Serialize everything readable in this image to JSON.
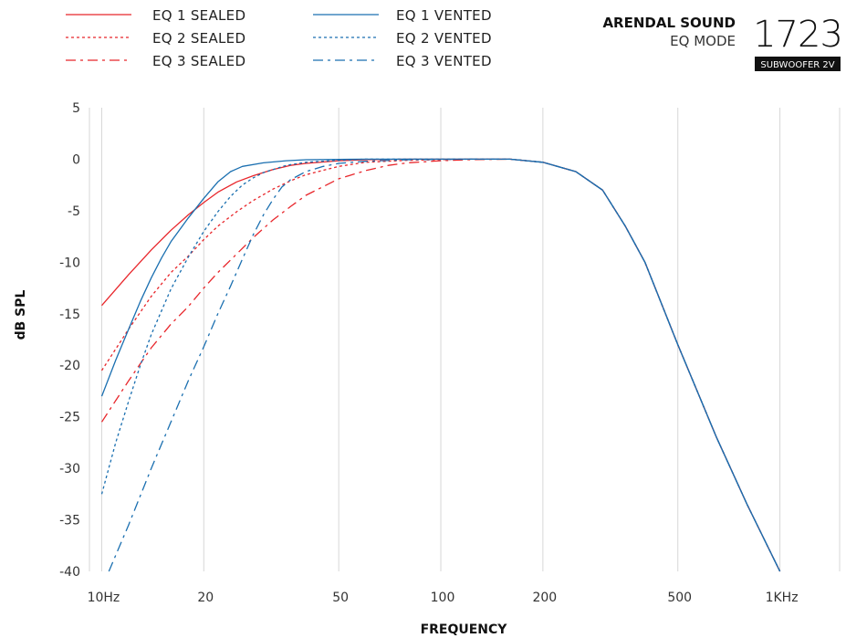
{
  "header": {
    "brand": "ARENDAL SOUND",
    "mode": "EQ MODE",
    "model_number": "1723",
    "model_tag": "SUBWOOFER 2V"
  },
  "chart_data": {
    "type": "line",
    "xlabel": "FREQUENCY",
    "ylabel": "dB SPL",
    "x_scale": "log",
    "xlim": [
      9.2,
      1500
    ],
    "ylim": [
      -40,
      5
    ],
    "x_ticks": [
      {
        "value": 10,
        "label": "10Hz"
      },
      {
        "value": 20,
        "label": "20"
      },
      {
        "value": 50,
        "label": "50"
      },
      {
        "value": 100,
        "label": "100"
      },
      {
        "value": 200,
        "label": "200"
      },
      {
        "value": 500,
        "label": "500"
      },
      {
        "value": 1000,
        "label": "1KHz"
      }
    ],
    "y_ticks": [
      5,
      0,
      -5,
      -10,
      -15,
      -20,
      -25,
      -30,
      -35,
      -40
    ],
    "grid": "vertical",
    "legend_position": "top-left",
    "series": [
      {
        "name": "EQ 1 SEALED",
        "color": "#e8262b",
        "dash": "solid",
        "points": [
          [
            10,
            -14.2
          ],
          [
            12,
            -11.2
          ],
          [
            14,
            -8.8
          ],
          [
            16,
            -6.9
          ],
          [
            18,
            -5.4
          ],
          [
            20,
            -4.2
          ],
          [
            22,
            -3.2
          ],
          [
            25,
            -2.2
          ],
          [
            28,
            -1.6
          ],
          [
            32,
            -1.0
          ],
          [
            36,
            -0.6
          ],
          [
            40,
            -0.4
          ],
          [
            50,
            -0.15
          ],
          [
            60,
            -0.05
          ],
          [
            80,
            0
          ],
          [
            120,
            0
          ],
          [
            160,
            0
          ],
          [
            200,
            -0.3
          ],
          [
            250,
            -1.2
          ],
          [
            300,
            -3.0
          ],
          [
            350,
            -6.5
          ],
          [
            400,
            -10
          ],
          [
            500,
            -18
          ],
          [
            650,
            -27
          ],
          [
            800,
            -33.5
          ],
          [
            1000,
            -40
          ]
        ]
      },
      {
        "name": "EQ 2 SEALED",
        "color": "#e8262b",
        "dash": "dotted",
        "points": [
          [
            10,
            -20.5
          ],
          [
            12,
            -16.5
          ],
          [
            14,
            -13.3
          ],
          [
            16,
            -11
          ],
          [
            18,
            -9.4
          ],
          [
            20,
            -7.8
          ],
          [
            22,
            -6.5
          ],
          [
            25,
            -5.1
          ],
          [
            28,
            -4.0
          ],
          [
            32,
            -2.9
          ],
          [
            36,
            -2.1
          ],
          [
            40,
            -1.5
          ],
          [
            50,
            -0.7
          ],
          [
            60,
            -0.3
          ],
          [
            80,
            -0.1
          ],
          [
            120,
            0
          ],
          [
            160,
            0
          ],
          [
            200,
            -0.3
          ],
          [
            250,
            -1.2
          ],
          [
            300,
            -3.0
          ],
          [
            350,
            -6.5
          ],
          [
            400,
            -10
          ],
          [
            500,
            -18
          ],
          [
            650,
            -27
          ],
          [
            800,
            -33.5
          ],
          [
            1000,
            -40
          ]
        ]
      },
      {
        "name": "EQ 3 SEALED",
        "color": "#e8262b",
        "dash": "dashdot",
        "points": [
          [
            10,
            -25.5
          ],
          [
            12,
            -21.5
          ],
          [
            14,
            -18.3
          ],
          [
            16,
            -16
          ],
          [
            18,
            -14.3
          ],
          [
            20,
            -12.5
          ],
          [
            22,
            -11
          ],
          [
            25,
            -9.2
          ],
          [
            28,
            -7.6
          ],
          [
            32,
            -5.9
          ],
          [
            36,
            -4.6
          ],
          [
            40,
            -3.5
          ],
          [
            50,
            -1.9
          ],
          [
            60,
            -1.1
          ],
          [
            70,
            -0.6
          ],
          [
            80,
            -0.35
          ],
          [
            100,
            -0.15
          ],
          [
            120,
            -0.05
          ],
          [
            160,
            0
          ],
          [
            200,
            -0.3
          ],
          [
            250,
            -1.2
          ],
          [
            300,
            -3.0
          ],
          [
            350,
            -6.5
          ],
          [
            400,
            -10
          ],
          [
            500,
            -18
          ],
          [
            650,
            -27
          ],
          [
            800,
            -33.5
          ],
          [
            1000,
            -40
          ]
        ]
      },
      {
        "name": "EQ 1 VENTED",
        "color": "#1a6fb0",
        "dash": "solid",
        "points": [
          [
            10,
            -23
          ],
          [
            11,
            -19.5
          ],
          [
            12,
            -16.5
          ],
          [
            13,
            -13.8
          ],
          [
            14,
            -11.5
          ],
          [
            15,
            -9.6
          ],
          [
            16,
            -8
          ],
          [
            18,
            -5.7
          ],
          [
            20,
            -3.8
          ],
          [
            22,
            -2.2
          ],
          [
            24,
            -1.2
          ],
          [
            26,
            -0.7
          ],
          [
            30,
            -0.35
          ],
          [
            35,
            -0.15
          ],
          [
            40,
            -0.05
          ],
          [
            60,
            0
          ],
          [
            120,
            0
          ],
          [
            160,
            0
          ],
          [
            200,
            -0.3
          ],
          [
            250,
            -1.2
          ],
          [
            300,
            -3.0
          ],
          [
            350,
            -6.5
          ],
          [
            400,
            -10
          ],
          [
            500,
            -18
          ],
          [
            650,
            -27
          ],
          [
            800,
            -33.5
          ],
          [
            1000,
            -40
          ]
        ]
      },
      {
        "name": "EQ 2 VENTED",
        "color": "#1a6fb0",
        "dash": "dotted",
        "points": [
          [
            10,
            -32.5
          ],
          [
            11,
            -27.5
          ],
          [
            12,
            -23.5
          ],
          [
            13,
            -20
          ],
          [
            14,
            -17
          ],
          [
            16,
            -12.6
          ],
          [
            18,
            -9.5
          ],
          [
            20,
            -7
          ],
          [
            22,
            -5.1
          ],
          [
            24,
            -3.6
          ],
          [
            26,
            -2.5
          ],
          [
            28,
            -1.8
          ],
          [
            30,
            -1.3
          ],
          [
            35,
            -0.6
          ],
          [
            40,
            -0.3
          ],
          [
            50,
            -0.1
          ],
          [
            60,
            0
          ],
          [
            120,
            0
          ],
          [
            160,
            0
          ],
          [
            200,
            -0.3
          ],
          [
            250,
            -1.2
          ],
          [
            300,
            -3.0
          ],
          [
            350,
            -6.5
          ],
          [
            400,
            -10
          ],
          [
            500,
            -18
          ],
          [
            650,
            -27
          ],
          [
            800,
            -33.5
          ],
          [
            1000,
            -40
          ]
        ]
      },
      {
        "name": "EQ 3 VENTED",
        "color": "#1a6fb0",
        "dash": "dashdot",
        "points": [
          [
            10.5,
            -40
          ],
          [
            12,
            -35.5
          ],
          [
            14,
            -30
          ],
          [
            16,
            -25.5
          ],
          [
            18,
            -21.5
          ],
          [
            20,
            -18.2
          ],
          [
            22,
            -15
          ],
          [
            24,
            -12.3
          ],
          [
            26,
            -9.7
          ],
          [
            28,
            -7.3
          ],
          [
            30,
            -5.4
          ],
          [
            32,
            -3.9
          ],
          [
            34,
            -2.7
          ],
          [
            36,
            -2.0
          ],
          [
            40,
            -1.2
          ],
          [
            45,
            -0.7
          ],
          [
            50,
            -0.4
          ],
          [
            60,
            -0.2
          ],
          [
            80,
            -0.05
          ],
          [
            120,
            0
          ],
          [
            160,
            0
          ],
          [
            200,
            -0.3
          ],
          [
            250,
            -1.2
          ],
          [
            300,
            -3.0
          ],
          [
            350,
            -6.5
          ],
          [
            400,
            -10
          ],
          [
            500,
            -18
          ],
          [
            650,
            -27
          ],
          [
            800,
            -33.5
          ],
          [
            1000,
            -40
          ]
        ]
      }
    ]
  }
}
